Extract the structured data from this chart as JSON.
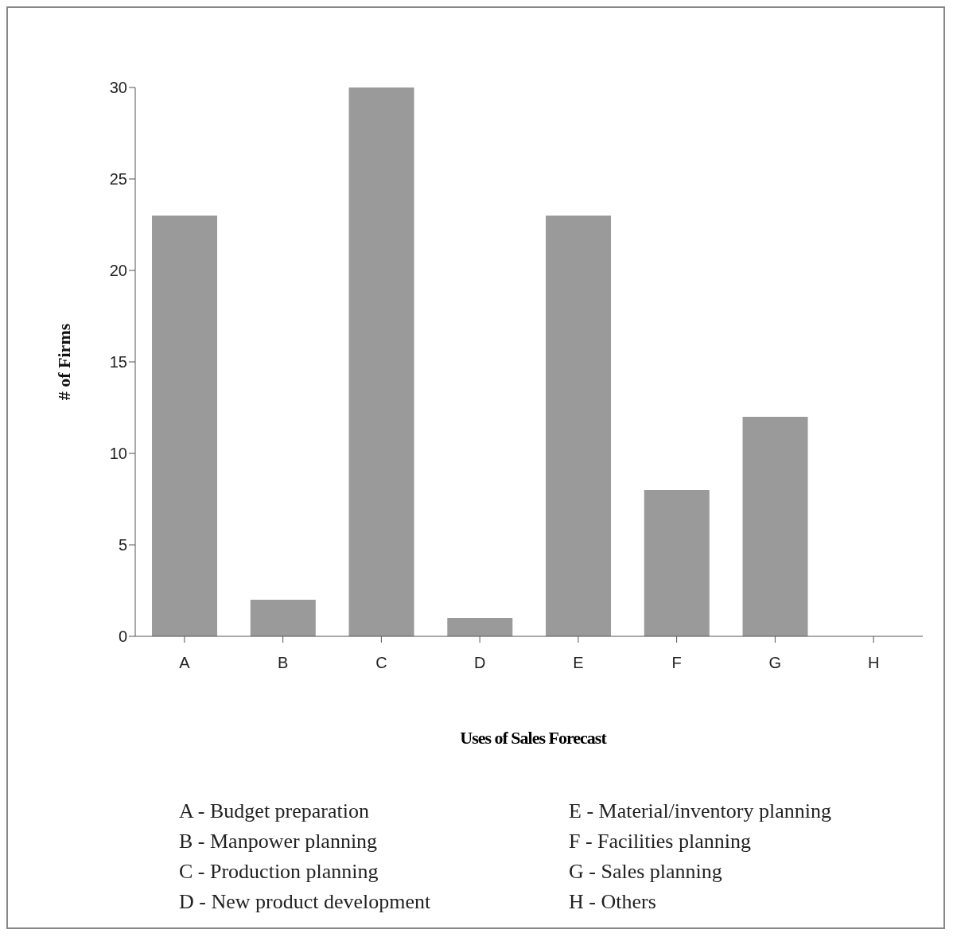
{
  "chart_data": {
    "type": "bar",
    "xlabel": "Uses of Sales Forecast",
    "ylabel": "# of Firms",
    "categories": [
      "A",
      "B",
      "C",
      "D",
      "E",
      "F",
      "G",
      "H"
    ],
    "values": [
      23,
      2,
      30,
      1,
      23,
      8,
      12,
      0
    ],
    "color": "#9a9a9a",
    "ylim": [
      0,
      30
    ],
    "yticks": [
      0,
      5,
      10,
      15,
      20,
      25,
      30
    ],
    "grid": false,
    "legend": false,
    "annotations": [
      "A - Budget preparation",
      "B - Manpower planning",
      "C - Production planning",
      "D - New product development",
      "E - Material/inventory planning",
      "F - Facilities planning",
      "G - Sales planning",
      "H - Others"
    ]
  }
}
